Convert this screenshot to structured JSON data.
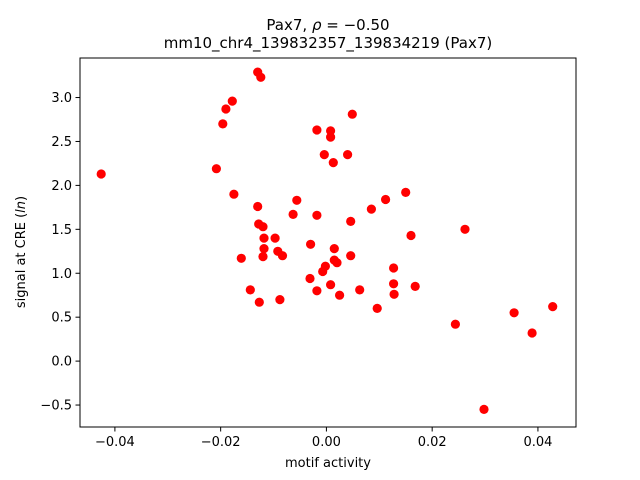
{
  "chart_data": {
    "type": "scatter",
    "title_line1_prefix": "Pax7, ",
    "title_line1_rho": "ρ",
    "title_line1_value": " = −0.50",
    "title_line2": "mm10_chr4_139832357_139834219 (Pax7)",
    "xlabel": "motif activity",
    "ylabel_prefix": "signal at CRE (",
    "ylabel_italic": "ln",
    "ylabel_suffix": ")",
    "xlim": [
      -0.0466,
      0.0472
    ],
    "ylim": [
      -0.75,
      3.45
    ],
    "xticks": [
      -0.04,
      -0.02,
      0.0,
      0.02,
      0.04
    ],
    "xtick_labels": [
      "−0.04",
      "−0.02",
      "0.00",
      "0.02",
      "0.04"
    ],
    "yticks": [
      -0.5,
      0.0,
      0.5,
      1.0,
      1.5,
      2.0,
      2.5,
      3.0
    ],
    "ytick_labels": [
      "−0.5",
      "0.0",
      "0.5",
      "1.0",
      "1.5",
      "2.0",
      "2.5",
      "3.0"
    ],
    "grid": false,
    "marker_color": "#ff0000",
    "points": [
      {
        "x": -0.0426,
        "y": 2.13
      },
      {
        "x": -0.0208,
        "y": 2.19
      },
      {
        "x": -0.0196,
        "y": 2.7
      },
      {
        "x": -0.019,
        "y": 2.87
      },
      {
        "x": -0.0178,
        "y": 2.96
      },
      {
        "x": -0.0175,
        "y": 1.9
      },
      {
        "x": -0.0161,
        "y": 1.17
      },
      {
        "x": -0.0144,
        "y": 0.81
      },
      {
        "x": -0.013,
        "y": 3.29
      },
      {
        "x": -0.0124,
        "y": 3.23
      },
      {
        "x": -0.013,
        "y": 1.76
      },
      {
        "x": -0.0128,
        "y": 1.56
      },
      {
        "x": -0.012,
        "y": 1.53
      },
      {
        "x": -0.0118,
        "y": 1.4
      },
      {
        "x": -0.0118,
        "y": 1.28
      },
      {
        "x": -0.012,
        "y": 1.19
      },
      {
        "x": -0.0127,
        "y": 0.67
      },
      {
        "x": -0.0097,
        "y": 1.4
      },
      {
        "x": -0.0092,
        "y": 1.25
      },
      {
        "x": -0.0083,
        "y": 1.2
      },
      {
        "x": -0.0088,
        "y": 0.7
      },
      {
        "x": -0.0063,
        "y": 1.67
      },
      {
        "x": -0.0056,
        "y": 1.83
      },
      {
        "x": -0.003,
        "y": 1.33
      },
      {
        "x": -0.0031,
        "y": 0.94
      },
      {
        "x": -0.0018,
        "y": 1.66
      },
      {
        "x": -0.0018,
        "y": 0.8
      },
      {
        "x": -0.0018,
        "y": 2.63
      },
      {
        "x": -0.0007,
        "y": 1.02
      },
      {
        "x": -0.0004,
        "y": 2.35
      },
      {
        "x": -0.0002,
        "y": 1.08
      },
      {
        "x": 0.0008,
        "y": 2.62
      },
      {
        "x": 0.0008,
        "y": 2.55
      },
      {
        "x": 0.0008,
        "y": 0.87
      },
      {
        "x": 0.0013,
        "y": 2.26
      },
      {
        "x": 0.0015,
        "y": 1.28
      },
      {
        "x": 0.0015,
        "y": 1.15
      },
      {
        "x": 0.002,
        "y": 1.12
      },
      {
        "x": 0.0025,
        "y": 0.75
      },
      {
        "x": 0.004,
        "y": 2.35
      },
      {
        "x": 0.0046,
        "y": 1.59
      },
      {
        "x": 0.0049,
        "y": 2.81
      },
      {
        "x": 0.0046,
        "y": 1.2
      },
      {
        "x": 0.0063,
        "y": 0.81
      },
      {
        "x": 0.0085,
        "y": 1.73
      },
      {
        "x": 0.0096,
        "y": 0.6
      },
      {
        "x": 0.0112,
        "y": 1.84
      },
      {
        "x": 0.0127,
        "y": 1.06
      },
      {
        "x": 0.0127,
        "y": 0.88
      },
      {
        "x": 0.0128,
        "y": 0.76
      },
      {
        "x": 0.015,
        "y": 1.92
      },
      {
        "x": 0.016,
        "y": 1.43
      },
      {
        "x": 0.0168,
        "y": 0.85
      },
      {
        "x": 0.0244,
        "y": 0.42
      },
      {
        "x": 0.0262,
        "y": 1.5
      },
      {
        "x": 0.0298,
        "y": -0.55
      },
      {
        "x": 0.0355,
        "y": 0.55
      },
      {
        "x": 0.0389,
        "y": 0.32
      },
      {
        "x": 0.0428,
        "y": 0.62
      }
    ]
  }
}
